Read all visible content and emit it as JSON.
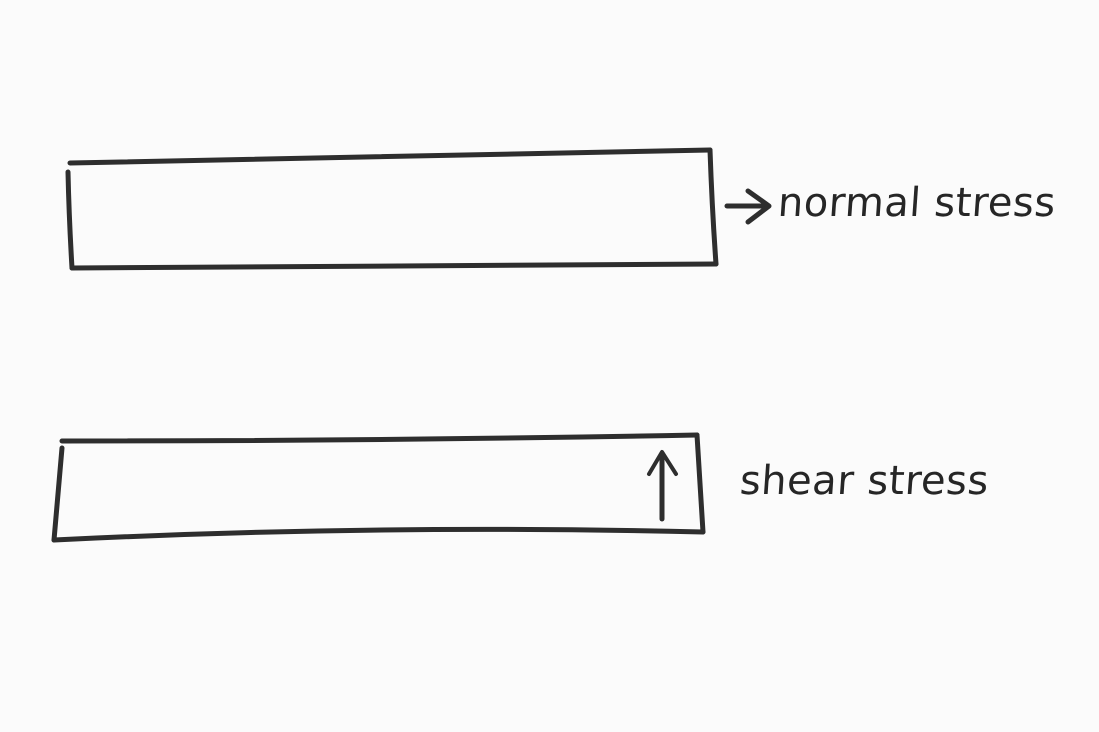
{
  "diagram": {
    "labels": {
      "normal": "normal stress",
      "shear": "shear stress"
    },
    "bars": [
      {
        "name": "normal-stress-bar",
        "arrow_direction": "right"
      },
      {
        "name": "shear-stress-bar",
        "arrow_direction": "up"
      }
    ],
    "colors": {
      "paper": "#fbfbfb",
      "ink": "#2e2e2e"
    }
  }
}
